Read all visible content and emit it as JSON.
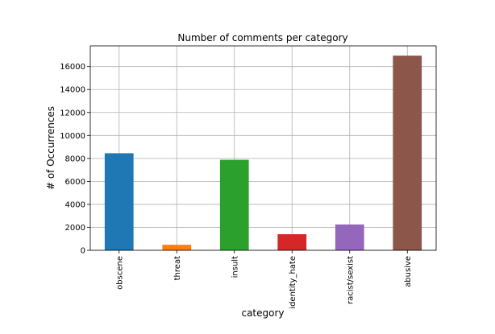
{
  "chart_data": {
    "type": "bar",
    "title": "Number of comments per category",
    "xlabel": "category",
    "ylabel": "# of Occurrences",
    "categories": [
      "obscene",
      "threat",
      "insult",
      "identity_hate",
      "racist/sexist",
      "abusive"
    ],
    "values": [
      8450,
      480,
      7880,
      1400,
      2250,
      16950
    ],
    "colors": [
      "#1f77b4",
      "#ff7f0e",
      "#2ca02c",
      "#d62728",
      "#9467bd",
      "#8c564b"
    ],
    "ylim": [
      0,
      17800
    ],
    "yticks": [
      0,
      2000,
      4000,
      6000,
      8000,
      10000,
      12000,
      14000,
      16000
    ],
    "grid": true,
    "legend": false
  }
}
